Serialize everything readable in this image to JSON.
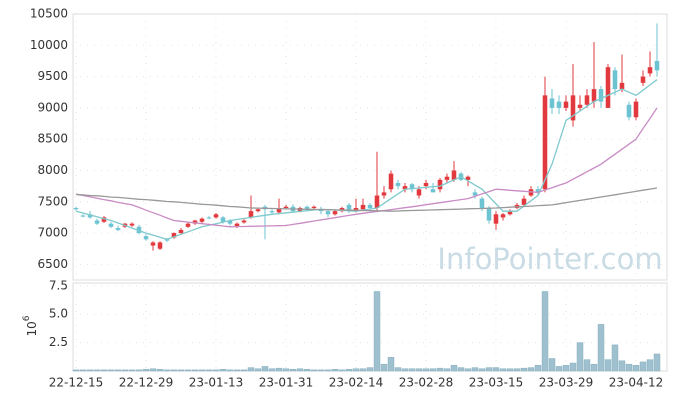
{
  "chart_data": {
    "type": "candlestick",
    "watermark": "InfoPointer.com",
    "categories": [
      "22-12-15",
      null,
      null,
      null,
      null,
      null,
      null,
      null,
      null,
      null,
      "22-12-29",
      null,
      null,
      null,
      null,
      null,
      null,
      null,
      null,
      null,
      "23-01-13",
      null,
      null,
      null,
      null,
      null,
      null,
      null,
      null,
      null,
      "23-01-31",
      null,
      null,
      null,
      null,
      null,
      null,
      null,
      null,
      null,
      "23-02-14",
      null,
      null,
      null,
      null,
      null,
      null,
      null,
      null,
      null,
      "23-02-28",
      null,
      null,
      null,
      null,
      null,
      null,
      null,
      null,
      null,
      "23-03-15",
      null,
      null,
      null,
      null,
      null,
      null,
      null,
      null,
      null,
      "23-03-29",
      null,
      null,
      null,
      null,
      null,
      null,
      null,
      null,
      null,
      "23-04-12",
      null,
      null,
      null
    ],
    "up_color": "#e2393f",
    "down_color": "#6cc3d2",
    "candles": {
      "open": [
        7400,
        7280,
        7300,
        7200,
        7180,
        7150,
        7080,
        7100,
        7120,
        7100,
        6950,
        6800,
        6750,
        6900,
        6930,
        7000,
        7100,
        7150,
        7180,
        7250,
        7250,
        7250,
        7200,
        7100,
        7170,
        7250,
        7350,
        7420,
        7350,
        7330,
        7400,
        7420,
        7350,
        7420,
        7400,
        7380,
        7350,
        7300,
        7350,
        7450,
        7350,
        7380,
        7450,
        7400,
        7600,
        7700,
        7800,
        7700,
        7780,
        7600,
        7750,
        7700,
        7700,
        7850,
        7850,
        7950,
        7850,
        7650,
        7550,
        7400,
        7150,
        7250,
        7300,
        7400,
        7450,
        7600,
        7700,
        7700,
        9150,
        9100,
        9000,
        8800,
        9000,
        9050,
        9100,
        9300,
        9000,
        9600,
        9300,
        9050,
        8850,
        9400,
        9550,
        9750
      ],
      "close": [
        7380,
        7270,
        7250,
        7150,
        7250,
        7100,
        7050,
        7150,
        7150,
        7000,
        6900,
        6850,
        6850,
        6880,
        7000,
        7050,
        7150,
        7200,
        7230,
        7240,
        7300,
        7180,
        7150,
        7150,
        7200,
        7350,
        7380,
        7380,
        7330,
        7400,
        7420,
        7350,
        7400,
        7380,
        7420,
        7350,
        7300,
        7350,
        7400,
        7350,
        7400,
        7450,
        7400,
        7600,
        7650,
        7950,
        7750,
        7750,
        7700,
        7700,
        7800,
        7650,
        7850,
        7900,
        8000,
        7850,
        7900,
        7600,
        7400,
        7200,
        7300,
        7300,
        7350,
        7450,
        7550,
        7700,
        7650,
        9200,
        9000,
        9000,
        9100,
        9200,
        9050,
        9200,
        9300,
        9100,
        9650,
        9300,
        9400,
        8850,
        9100,
        9500,
        9650,
        9600
      ],
      "high": [
        7420,
        7300,
        7350,
        7230,
        7270,
        7180,
        7120,
        7160,
        7170,
        7130,
        6980,
        6870,
        6870,
        6920,
        7010,
        7080,
        7170,
        7210,
        7250,
        7270,
        7320,
        7270,
        7220,
        7170,
        7220,
        7600,
        7400,
        7450,
        7380,
        7550,
        7450,
        7460,
        7420,
        7440,
        7440,
        7420,
        7370,
        7380,
        7420,
        7480,
        7550,
        7550,
        7480,
        8300,
        7750,
        8000,
        7850,
        7800,
        7800,
        7750,
        7850,
        7800,
        7880,
        7950,
        8150,
        7980,
        7920,
        7700,
        7580,
        7430,
        7350,
        7320,
        7380,
        7480,
        7600,
        7750,
        7750,
        9500,
        9300,
        9200,
        9200,
        9700,
        9200,
        9300,
        10050,
        9350,
        9700,
        9650,
        9850,
        9100,
        9150,
        9600,
        9900,
        10350
      ],
      "low": [
        7360,
        7250,
        7230,
        7130,
        7160,
        7080,
        7030,
        7080,
        7100,
        6980,
        6880,
        6720,
        6730,
        6860,
        6910,
        6980,
        7080,
        7130,
        7160,
        7220,
        7230,
        7150,
        7120,
        7080,
        7150,
        7230,
        7330,
        6900,
        7300,
        7300,
        7380,
        7330,
        7330,
        7360,
        7380,
        7300,
        7250,
        7280,
        7330,
        7320,
        7330,
        7350,
        7380,
        7350,
        7550,
        7650,
        7700,
        7650,
        7650,
        7550,
        7700,
        7650,
        7650,
        7800,
        7820,
        7830,
        7750,
        7550,
        7350,
        7150,
        7050,
        7200,
        7280,
        7380,
        7430,
        7580,
        7600,
        7650,
        8900,
        8900,
        8950,
        8700,
        8950,
        9000,
        9000,
        9000,
        9000,
        9200,
        9250,
        8800,
        8800,
        9350,
        9500,
        9500
      ]
    },
    "lines": [
      {
        "color": "#7ec9cc",
        "values": [
          7350,
          7320,
          7290,
          7260,
          7230,
          7200,
          7160,
          7120,
          7080,
          7040,
          7000,
          6967,
          6933,
          6900,
          6940,
          6980,
          7020,
          7060,
          7100,
          7125,
          7150,
          7175,
          7200,
          7217,
          7233,
          7250,
          7267,
          7283,
          7300,
          7311,
          7323,
          7334,
          7346,
          7357,
          7369,
          7380,
          7374,
          7368,
          7362,
          7356,
          7350,
          7367,
          7383,
          7400,
          7475,
          7550,
          7625,
          7700,
          7710,
          7720,
          7730,
          7740,
          7750,
          7800,
          7850,
          7900,
          7833,
          7767,
          7700,
          7583,
          7467,
          7350,
          7350,
          7350,
          7433,
          7517,
          7600,
          7850,
          8100,
          8450,
          8800,
          8875,
          8950,
          9025,
          9100,
          9150,
          9200,
          9250,
          9300,
          9250,
          9200,
          9283,
          9367,
          9450
        ]
      },
      {
        "color": "#c98bc4",
        "values": [
          7620,
          7600,
          7580,
          7555,
          7535,
          7515,
          7490,
          7470,
          7450,
          7410,
          7365,
          7325,
          7285,
          7240,
          7200,
          7188,
          7175,
          7163,
          7150,
          7138,
          7125,
          7113,
          7100,
          7103,
          7105,
          7108,
          7110,
          7113,
          7115,
          7118,
          7120,
          7138,
          7156,
          7174,
          7192,
          7210,
          7228,
          7246,
          7264,
          7282,
          7300,
          7315,
          7330,
          7345,
          7360,
          7375,
          7390,
          7405,
          7420,
          7436,
          7453,
          7469,
          7485,
          7501,
          7518,
          7534,
          7550,
          7588,
          7625,
          7663,
          7700,
          7692,
          7683,
          7675,
          7667,
          7658,
          7650,
          7688,
          7725,
          7763,
          7800,
          7860,
          7920,
          7980,
          8040,
          8100,
          8180,
          8260,
          8340,
          8420,
          8500,
          8670,
          8830,
          9000
        ]
      },
      {
        "color": "#999999",
        "values": [
          7620,
          7610,
          7600,
          7595,
          7585,
          7575,
          7570,
          7560,
          7550,
          7540,
          7535,
          7525,
          7515,
          7505,
          7500,
          7490,
          7480,
          7470,
          7460,
          7455,
          7445,
          7435,
          7425,
          7420,
          7410,
          7400,
          7398,
          7395,
          7393,
          7390,
          7388,
          7385,
          7383,
          7380,
          7378,
          7375,
          7373,
          7370,
          7368,
          7365,
          7363,
          7360,
          7358,
          7355,
          7353,
          7350,
          7353,
          7357,
          7360,
          7363,
          7367,
          7370,
          7373,
          7377,
          7380,
          7383,
          7387,
          7390,
          7393,
          7397,
          7400,
          7406,
          7413,
          7419,
          7425,
          7431,
          7438,
          7444,
          7450,
          7468,
          7486,
          7504,
          7522,
          7540,
          7558,
          7576,
          7594,
          7612,
          7630,
          7648,
          7666,
          7684,
          7702,
          7720
        ]
      }
    ],
    "ylim": [
      6250,
      10500
    ],
    "yticks": [
      6500,
      7000,
      7500,
      8000,
      8500,
      9000,
      9500,
      10000,
      10500
    ],
    "volume": {
      "color": "#9fc0cf",
      "ylabel": {
        "base": "10",
        "exp": "6"
      },
      "values": [
        0.1,
        0.1,
        0.1,
        0.1,
        0.1,
        0.1,
        0.1,
        0.1,
        0.1,
        0.1,
        0.15,
        0.2,
        0.15,
        0.1,
        0.1,
        0.1,
        0.1,
        0.1,
        0.1,
        0.1,
        0.1,
        0.15,
        0.1,
        0.1,
        0.1,
        0.3,
        0.2,
        0.4,
        0.2,
        0.25,
        0.2,
        0.15,
        0.2,
        0.15,
        0.1,
        0.1,
        0.1,
        0.15,
        0.1,
        0.15,
        0.2,
        0.2,
        0.3,
        7.0,
        0.6,
        1.2,
        0.3,
        0.2,
        0.2,
        0.2,
        0.2,
        0.2,
        0.25,
        0.2,
        0.5,
        0.3,
        0.2,
        0.3,
        0.2,
        0.3,
        0.3,
        0.2,
        0.2,
        0.2,
        0.25,
        0.3,
        0.5,
        7.0,
        1.1,
        0.4,
        0.5,
        0.7,
        2.5,
        1.0,
        0.6,
        4.1,
        1.0,
        2.3,
        0.9,
        0.6,
        0.5,
        0.8,
        1.0,
        1.5
      ],
      "ylim": [
        0,
        7.75
      ],
      "yticks": [
        2.5,
        {
          "value": 5,
          "label": "5.0"
        },
        7.5
      ]
    },
    "grid": true
  }
}
